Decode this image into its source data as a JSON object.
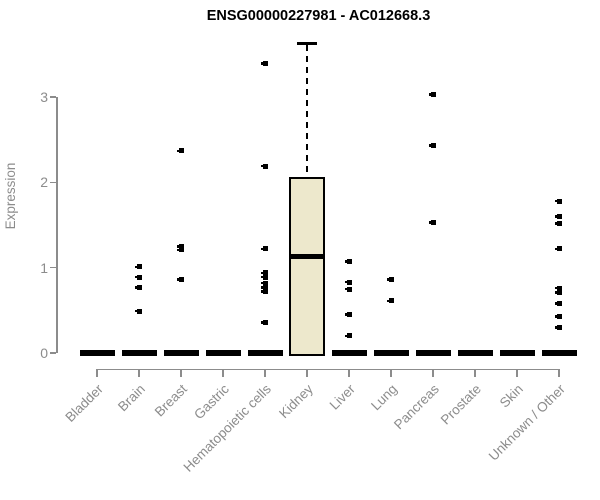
{
  "title": "ENSG00000227981 - AC012668.3",
  "colors": {
    "box_fill": "#EDE8CC",
    "box_border": "#000000",
    "axis": "#8C8C8C",
    "tick_label": "#8C8C8C",
    "title_color": "#000000"
  },
  "chart_data": {
    "type": "boxplot",
    "title": "ENSG00000227981 - AC012668.3",
    "xlabel": "",
    "ylabel": "Expression",
    "ylim": [
      0,
      3.7
    ],
    "yticks": [
      0,
      1,
      2,
      3
    ],
    "grid": false,
    "legend": false,
    "categories": [
      "Bladder",
      "Brain",
      "Breast",
      "Gastric",
      "Hematopoietic cells",
      "Kidney",
      "Liver",
      "Lung",
      "Pancreas",
      "Prostate",
      "Skin",
      "Unknown / Other"
    ],
    "boxes": [
      {
        "category": "Bladder",
        "q1": 0,
        "median": 0,
        "q3": 0,
        "whisker_low": 0,
        "whisker_high": 0,
        "outliers": []
      },
      {
        "category": "Brain",
        "q1": 0,
        "median": 0,
        "q3": 0,
        "whisker_low": 0,
        "whisker_high": 0,
        "outliers": [
          1.01,
          0.89,
          0.77,
          0.49
        ]
      },
      {
        "category": "Breast",
        "q1": 0,
        "median": 0,
        "q3": 0,
        "whisker_low": 0,
        "whisker_high": 0,
        "outliers": [
          2.37,
          1.25,
          1.21,
          0.86
        ]
      },
      {
        "category": "Gastric",
        "q1": 0,
        "median": 0,
        "q3": 0,
        "whisker_low": 0,
        "whisker_high": 0,
        "outliers": []
      },
      {
        "category": "Hematopoietic cells",
        "q1": 0,
        "median": 0,
        "q3": 0,
        "whisker_low": 0,
        "whisker_high": 0,
        "outliers": [
          3.39,
          2.19,
          1.22,
          0.94,
          0.89,
          0.82,
          0.77,
          0.72,
          0.36
        ]
      },
      {
        "category": "Kidney",
        "q1": 0,
        "median": 1.13,
        "q3": 2.05,
        "whisker_low": 0,
        "whisker_high": 3.63,
        "outliers": []
      },
      {
        "category": "Liver",
        "q1": 0,
        "median": 0,
        "q3": 0,
        "whisker_low": 0,
        "whisker_high": 0,
        "outliers": [
          1.07,
          0.83,
          0.75,
          0.45,
          0.2
        ]
      },
      {
        "category": "Lung",
        "q1": 0,
        "median": 0,
        "q3": 0,
        "whisker_low": 0,
        "whisker_high": 0,
        "outliers": [
          0.86,
          0.61
        ]
      },
      {
        "category": "Pancreas",
        "q1": 0,
        "median": 0,
        "q3": 0,
        "whisker_low": 0,
        "whisker_high": 0,
        "outliers": [
          3.03,
          2.43,
          1.53
        ]
      },
      {
        "category": "Prostate",
        "q1": 0,
        "median": 0,
        "q3": 0,
        "whisker_low": 0,
        "whisker_high": 0,
        "outliers": []
      },
      {
        "category": "Skin",
        "q1": 0,
        "median": 0,
        "q3": 0,
        "whisker_low": 0,
        "whisker_high": 0,
        "outliers": []
      },
      {
        "category": "Unknown / Other",
        "q1": 0,
        "median": 0,
        "q3": 0,
        "whisker_low": 0,
        "whisker_high": 0,
        "outliers": [
          1.78,
          1.6,
          1.52,
          1.22,
          0.76,
          0.71,
          0.58,
          0.43,
          0.3
        ]
      }
    ]
  }
}
